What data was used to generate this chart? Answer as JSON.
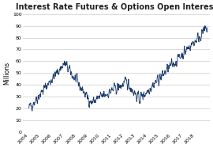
{
  "title": "Interest Rate Futures & Options Open Interest",
  "ylabel": "Millions",
  "ylim": [
    0,
    100
  ],
  "yticks": [
    0,
    10,
    20,
    30,
    40,
    50,
    60,
    70,
    80,
    90,
    100
  ],
  "xtick_years": [
    "2004",
    "2005",
    "2006",
    "2007",
    "2008",
    "2009",
    "2010",
    "2011",
    "2012",
    "2013",
    "2014",
    "2015",
    "2016",
    "2017",
    "2018"
  ],
  "line_color": "#1a3a6b",
  "bg_color": "#ffffff",
  "grid_color": "#cccccc",
  "title_fontsize": 7,
  "label_fontsize": 5.5,
  "tick_fontsize": 4.5
}
